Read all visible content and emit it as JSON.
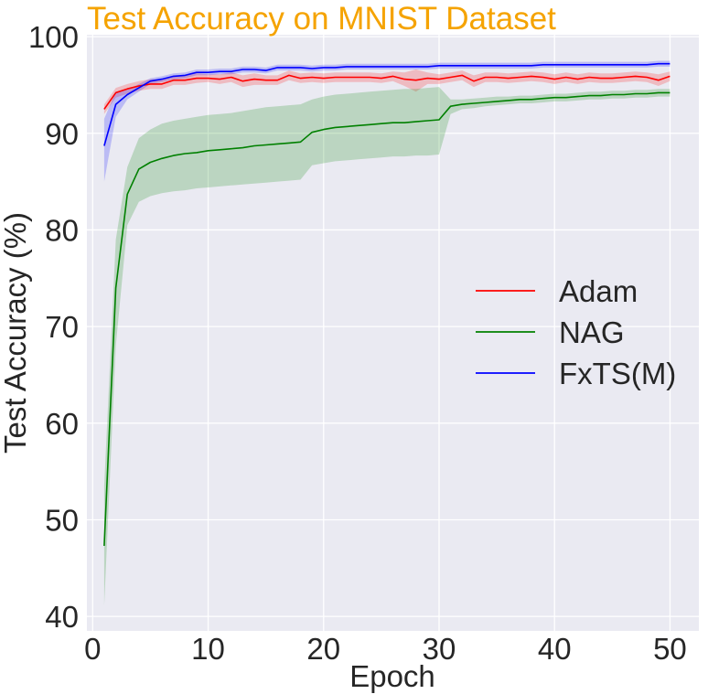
{
  "chart_data": {
    "type": "line",
    "title": "Test Accuracy on MNIST Dataset",
    "xlabel": "Epoch",
    "ylabel": "Test Accuracy (%)",
    "xlim": [
      -0.5,
      52.5
    ],
    "ylim": [
      38.5,
      100.2
    ],
    "xticks": [
      0,
      10,
      20,
      30,
      40,
      50
    ],
    "yticks": [
      40,
      50,
      60,
      70,
      80,
      90,
      100
    ],
    "grid": true,
    "legend_position": "center-right",
    "x": [
      1,
      2,
      3,
      4,
      5,
      6,
      7,
      8,
      9,
      10,
      11,
      12,
      13,
      14,
      15,
      16,
      17,
      18,
      19,
      20,
      21,
      22,
      23,
      24,
      25,
      26,
      27,
      28,
      29,
      30,
      31,
      32,
      33,
      34,
      35,
      36,
      37,
      38,
      39,
      40,
      41,
      42,
      43,
      44,
      45,
      46,
      47,
      48,
      49,
      50
    ],
    "series": [
      {
        "name": "Adam",
        "color": "#ff0000",
        "values": [
          92.5,
          94.2,
          94.6,
          94.9,
          95.1,
          95.1,
          95.5,
          95.5,
          95.7,
          95.7,
          95.6,
          95.8,
          95.4,
          95.6,
          95.5,
          95.5,
          96.0,
          95.7,
          95.8,
          95.7,
          95.8,
          95.8,
          95.8,
          95.8,
          95.7,
          95.9,
          95.6,
          95.5,
          95.7,
          95.6,
          95.8,
          96.0,
          95.4,
          95.8,
          95.8,
          95.7,
          95.8,
          95.9,
          95.8,
          95.6,
          95.8,
          95.6,
          95.8,
          95.7,
          95.7,
          95.8,
          95.9,
          95.8,
          95.5,
          95.9
        ],
        "lower": [
          92.0,
          93.7,
          94.1,
          94.4,
          94.6,
          94.6,
          95.0,
          95.0,
          95.2,
          95.3,
          95.1,
          95.3,
          94.8,
          95.0,
          95.0,
          95.0,
          95.5,
          95.2,
          95.3,
          95.2,
          95.3,
          95.3,
          95.3,
          95.3,
          95.2,
          95.4,
          94.9,
          94.3,
          95.1,
          95.1,
          95.3,
          95.5,
          94.8,
          95.3,
          95.3,
          95.2,
          95.3,
          95.4,
          95.3,
          95.1,
          95.3,
          95.1,
          95.3,
          95.2,
          95.2,
          95.3,
          95.4,
          95.3,
          94.9,
          95.4
        ],
        "upper": [
          93.0,
          94.7,
          95.1,
          95.4,
          95.6,
          95.6,
          96.0,
          96.0,
          96.2,
          96.1,
          96.1,
          96.3,
          96.0,
          96.2,
          96.0,
          96.0,
          96.5,
          96.2,
          96.3,
          96.2,
          96.3,
          96.3,
          96.3,
          96.3,
          96.2,
          96.4,
          96.3,
          96.6,
          96.3,
          96.1,
          96.3,
          96.5,
          96.0,
          96.3,
          96.3,
          96.2,
          96.3,
          96.4,
          96.3,
          96.1,
          96.3,
          96.1,
          96.3,
          96.2,
          96.2,
          96.3,
          96.4,
          96.3,
          96.1,
          96.4
        ]
      },
      {
        "name": "NAG",
        "color": "#008000",
        "values": [
          47.3,
          74.0,
          83.7,
          86.3,
          87.0,
          87.4,
          87.7,
          87.9,
          88.0,
          88.2,
          88.3,
          88.4,
          88.5,
          88.7,
          88.8,
          88.9,
          89.0,
          89.1,
          90.1,
          90.4,
          90.6,
          90.7,
          90.8,
          90.9,
          91.0,
          91.1,
          91.1,
          91.2,
          91.3,
          91.4,
          92.8,
          93.0,
          93.1,
          93.2,
          93.3,
          93.4,
          93.5,
          93.5,
          93.6,
          93.7,
          93.7,
          93.8,
          93.9,
          93.9,
          94.0,
          94.0,
          94.1,
          94.1,
          94.2,
          94.2
        ],
        "lower": [
          41.1,
          68.0,
          80.5,
          82.9,
          83.5,
          83.8,
          84.0,
          84.1,
          84.3,
          84.4,
          84.5,
          84.6,
          84.7,
          84.8,
          84.9,
          85.0,
          85.1,
          85.2,
          86.7,
          86.9,
          87.1,
          87.2,
          87.3,
          87.4,
          87.5,
          87.6,
          87.6,
          87.7,
          87.7,
          87.8,
          92.0,
          92.5,
          92.6,
          92.8,
          92.9,
          93.0,
          93.1,
          93.1,
          93.2,
          93.3,
          93.3,
          93.4,
          93.5,
          93.5,
          93.6,
          93.6,
          93.7,
          93.7,
          93.8,
          93.8
        ],
        "upper": [
          53.5,
          79.0,
          86.5,
          89.5,
          90.4,
          91.0,
          91.3,
          91.5,
          91.7,
          91.9,
          92.0,
          92.1,
          92.3,
          92.5,
          92.7,
          92.8,
          92.9,
          93.0,
          93.5,
          93.8,
          94.0,
          94.1,
          94.2,
          94.3,
          94.4,
          94.5,
          94.6,
          94.6,
          94.7,
          94.8,
          93.5,
          93.5,
          93.6,
          93.7,
          93.8,
          93.8,
          93.9,
          93.9,
          94.0,
          94.1,
          94.1,
          94.2,
          94.3,
          94.3,
          94.4,
          94.4,
          94.5,
          94.5,
          94.6,
          94.6
        ]
      },
      {
        "name": "FxTS(M)",
        "color": "#0000ff",
        "values": [
          88.7,
          93.0,
          94.0,
          94.7,
          95.4,
          95.6,
          95.9,
          96.0,
          96.3,
          96.3,
          96.4,
          96.4,
          96.6,
          96.6,
          96.5,
          96.8,
          96.8,
          96.8,
          96.7,
          96.8,
          96.8,
          96.9,
          96.9,
          96.9,
          96.9,
          96.9,
          96.9,
          96.9,
          96.9,
          97.0,
          97.0,
          97.0,
          97.0,
          97.0,
          97.0,
          97.0,
          97.0,
          97.0,
          97.1,
          97.1,
          97.1,
          97.1,
          97.1,
          97.1,
          97.1,
          97.1,
          97.1,
          97.1,
          97.2,
          97.2
        ],
        "lower": [
          85.0,
          91.7,
          93.5,
          94.3,
          95.1,
          95.3,
          95.6,
          95.7,
          96.0,
          96.0,
          96.1,
          96.1,
          96.3,
          96.3,
          96.2,
          96.5,
          96.5,
          96.5,
          96.4,
          96.5,
          96.5,
          96.6,
          96.6,
          96.6,
          96.6,
          96.6,
          96.6,
          96.6,
          96.6,
          96.7,
          96.7,
          96.7,
          96.7,
          96.7,
          96.7,
          96.7,
          96.7,
          96.7,
          96.8,
          96.8,
          96.8,
          96.8,
          96.8,
          96.8,
          96.8,
          96.8,
          96.8,
          96.8,
          96.9,
          96.9
        ],
        "upper": [
          91.5,
          94.3,
          94.5,
          95.1,
          95.7,
          95.9,
          96.2,
          96.3,
          96.6,
          96.6,
          96.7,
          96.7,
          96.9,
          96.9,
          96.8,
          97.1,
          97.1,
          97.1,
          97.0,
          97.1,
          97.1,
          97.2,
          97.2,
          97.2,
          97.2,
          97.2,
          97.2,
          97.2,
          97.2,
          97.3,
          97.3,
          97.3,
          97.3,
          97.3,
          97.3,
          97.3,
          97.3,
          97.3,
          97.4,
          97.4,
          97.4,
          97.4,
          97.4,
          97.4,
          97.4,
          97.4,
          97.4,
          97.4,
          97.5,
          97.5
        ]
      }
    ]
  },
  "style": {
    "background": "#eaeaf2",
    "grid_color": "#ffffff",
    "title_color": "#f5a300"
  }
}
